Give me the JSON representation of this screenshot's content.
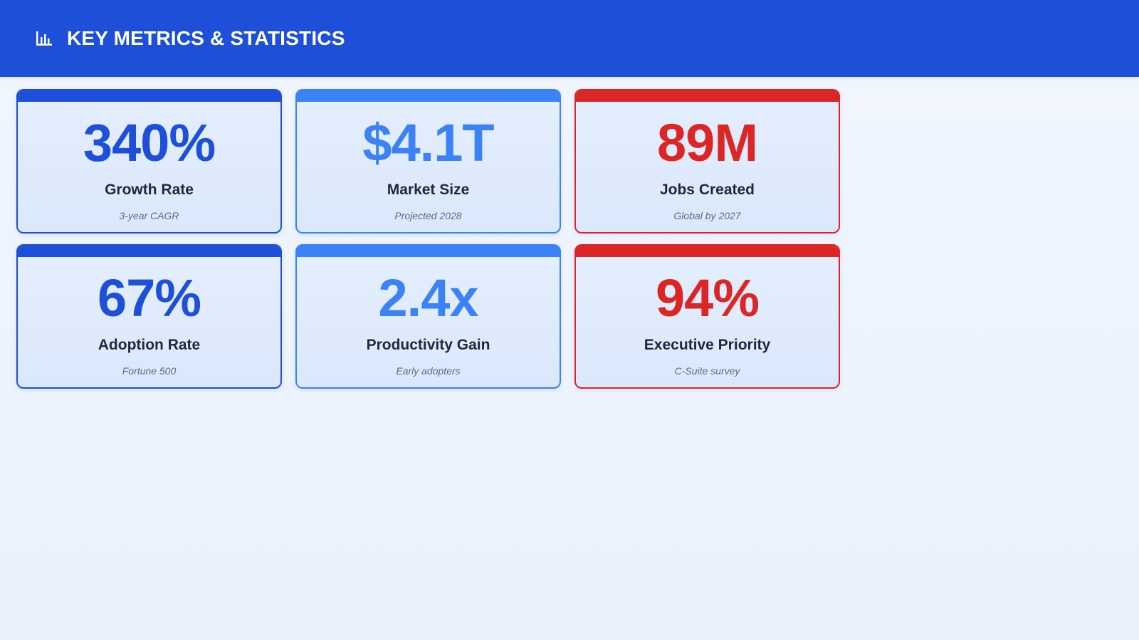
{
  "header": {
    "icon": "bar-chart-icon",
    "title": "KEY METRICS & STATISTICS"
  },
  "colors": {
    "header_bg": "#1d4fd8",
    "dark_blue": "#1d4fd8",
    "light_blue": "#3b82f6",
    "red": "#dc2626"
  },
  "metrics": [
    {
      "value": "340%",
      "label": "Growth Rate",
      "sub": "3-year CAGR",
      "accent": "#1d4fd8"
    },
    {
      "value": "$4.1T",
      "label": "Market Size",
      "sub": "Projected 2028",
      "accent": "#3b82f6"
    },
    {
      "value": "89M",
      "label": "Jobs Created",
      "sub": "Global by 2027",
      "accent": "#dc2626"
    },
    {
      "value": "67%",
      "label": "Adoption Rate",
      "sub": "Fortune 500",
      "accent": "#1d4fd8"
    },
    {
      "value": "2.4x",
      "label": "Productivity Gain",
      "sub": "Early adopters",
      "accent": "#3b82f6"
    },
    {
      "value": "94%",
      "label": "Executive Priority",
      "sub": "C-Suite survey",
      "accent": "#dc2626"
    }
  ]
}
